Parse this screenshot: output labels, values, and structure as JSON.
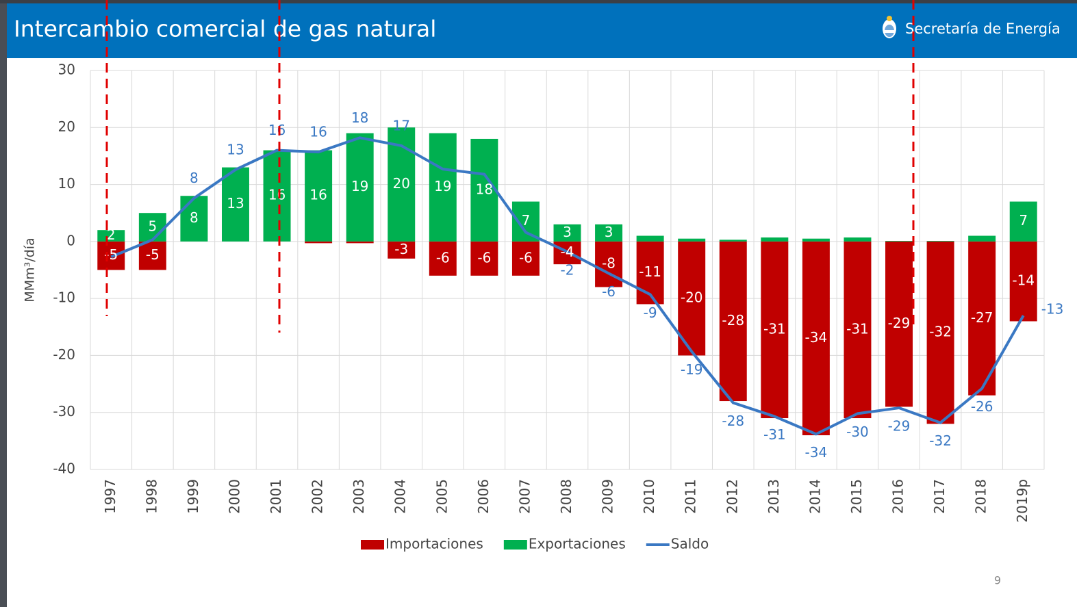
{
  "header": {
    "title": "Intercambio comercial de gas natural",
    "org": "Secretaría de Energía"
  },
  "page_number": "9",
  "chart_data": {
    "type": "bar",
    "y_label": "MMm³/día",
    "categories": [
      "1997",
      "1998",
      "1999",
      "2000",
      "2001",
      "2002",
      "2003",
      "2004",
      "2005",
      "2006",
      "2007",
      "2008",
      "2009",
      "2010",
      "2011",
      "2012",
      "2013",
      "2014",
      "2015",
      "2016",
      "2017",
      "2018",
      "2019p"
    ],
    "series": [
      {
        "name": "Importaciones",
        "kind": "bar",
        "color": "#c00000",
        "values": [
          -5,
          -5,
          0,
          0,
          0,
          -0.3,
          -0.3,
          -3,
          -6,
          -6,
          -6,
          -4,
          -8,
          -11,
          -20,
          -28,
          -31,
          -34,
          -31,
          -29,
          -32,
          -27,
          -14
        ],
        "value_labels": [
          "-5",
          "-5",
          null,
          null,
          null,
          null,
          null,
          "-3",
          "-6",
          "-6",
          "-6",
          "-4",
          "-8",
          "-11",
          "-20",
          "-28",
          "-31",
          "-34",
          "-31",
          "-29",
          "-32",
          "-27",
          "-14"
        ]
      },
      {
        "name": "Exportaciones",
        "kind": "bar",
        "color": "#00b050",
        "values": [
          2,
          5,
          8,
          13,
          16,
          16,
          19,
          20,
          19,
          18,
          7,
          3,
          3,
          1,
          0.5,
          0.3,
          0.7,
          0.5,
          0.7,
          0.1,
          0.1,
          1,
          7
        ],
        "value_labels": [
          "2",
          "5",
          "8",
          "13",
          "16",
          "16",
          "19",
          "20",
          "19",
          "18",
          "7",
          "3",
          "3",
          null,
          null,
          null,
          null,
          null,
          null,
          null,
          null,
          null,
          "7"
        ]
      },
      {
        "name": "Saldo",
        "kind": "line",
        "color": "#3a78c3",
        "values": [
          -2.7,
          0.3,
          7.6,
          12.6,
          16,
          15.7,
          18.2,
          16.8,
          12.7,
          11.8,
          1.6,
          -1.8,
          -5.6,
          -9.3,
          -19.3,
          -28.3,
          -30.7,
          -33.8,
          -30.2,
          -29.2,
          -31.8,
          -25.8,
          -13
        ],
        "value_labels": [
          null,
          null,
          "8",
          "13",
          "16",
          "16",
          "18",
          "17",
          null,
          null,
          null,
          "-2",
          "-6",
          "-9",
          "-19",
          "-28",
          "-31",
          "-34",
          "-30",
          "-29",
          "-32",
          "-26",
          "-13"
        ]
      }
    ],
    "ylim": [
      -40,
      30
    ],
    "yticks": [
      -40,
      -30,
      -20,
      -10,
      0,
      10,
      20,
      30
    ],
    "grid": true,
    "legend": "bottom"
  }
}
